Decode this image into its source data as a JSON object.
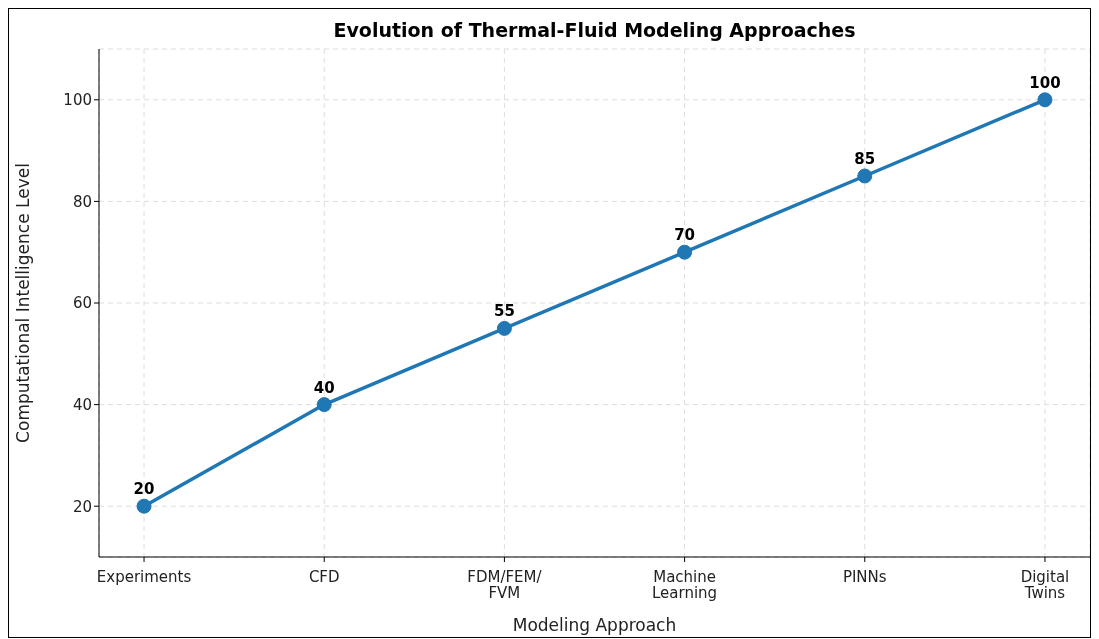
{
  "chart_data": {
    "type": "line",
    "title": "Evolution of Thermal-Fluid Modeling Approaches",
    "xlabel": "Modeling Approach",
    "ylabel": "Computational Intelligence Level",
    "categories": [
      "Experiments",
      "CFD",
      "FDM/FEM/\nFVM",
      "Machine\nLearning",
      "PINNs",
      "Digital\nTwins"
    ],
    "series": [
      {
        "color": "#1f77b4",
        "values": [
          20,
          40,
          55,
          70,
          85,
          100
        ]
      }
    ],
    "ylim": [
      10,
      110
    ],
    "yticks": [
      20,
      40,
      60,
      80,
      100
    ],
    "grid": true,
    "data_labels": true,
    "marker": "circle",
    "line_style": "solid",
    "legend": false
  }
}
